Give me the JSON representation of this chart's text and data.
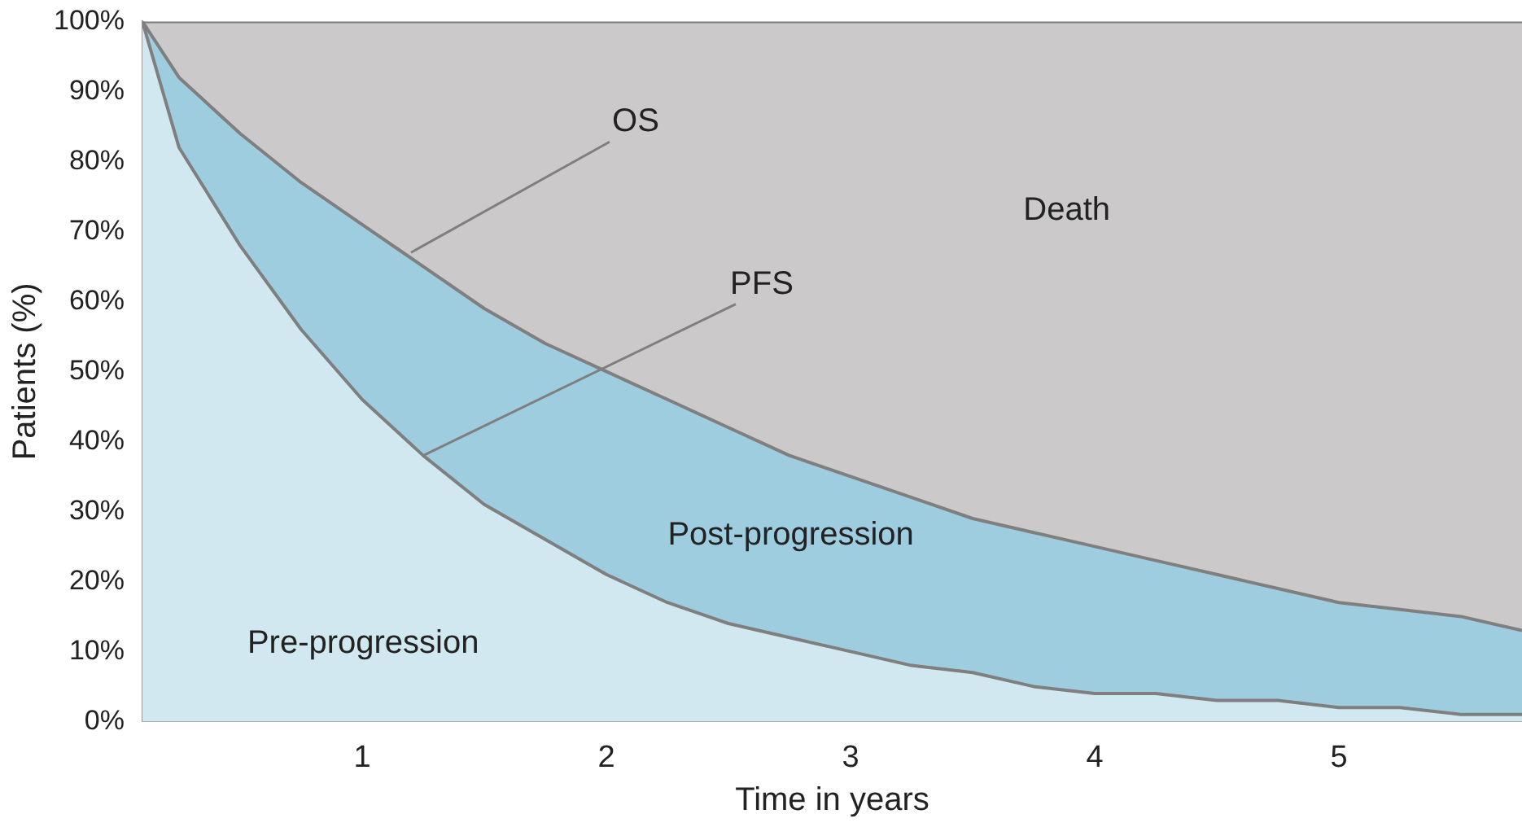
{
  "chart_data": {
    "type": "area",
    "stacked": true,
    "xlabel": "Time in years",
    "ylabel": "Patients (%)",
    "x": [
      0.1,
      0.25,
      0.5,
      0.75,
      1,
      1.25,
      1.5,
      1.75,
      2,
      2.25,
      2.5,
      2.75,
      3,
      3.25,
      3.5,
      3.75,
      4,
      4.25,
      4.5,
      4.75,
      5,
      5.25,
      5.5,
      5.75
    ],
    "series": [
      {
        "name": "Pre-progression",
        "color": "#d2e8f0",
        "values": [
          100,
          82,
          68,
          56,
          46,
          38,
          31,
          26,
          21,
          17,
          14,
          12,
          10,
          8,
          7,
          5,
          4,
          4,
          3,
          3,
          2,
          2,
          1,
          1
        ]
      },
      {
        "name": "Post-progression",
        "color": "#9fcde0",
        "values": [
          0,
          10,
          16,
          21,
          25,
          27,
          28,
          28,
          29,
          29,
          28,
          26,
          25,
          24,
          22,
          22,
          21,
          19,
          18,
          16,
          15,
          14,
          14,
          12
        ]
      },
      {
        "name": "Death",
        "color": "#cbc9ca",
        "values": [
          0,
          8,
          16,
          23,
          29,
          35,
          41,
          46,
          50,
          54,
          58,
          62,
          65,
          68,
          71,
          73,
          75,
          77,
          79,
          81,
          83,
          84,
          85,
          87
        ]
      }
    ],
    "xlim": [
      0.1,
      5.75
    ],
    "xticks": [
      1,
      2,
      3,
      4,
      5
    ],
    "ylim": [
      0,
      100
    ],
    "yticks": [
      {
        "value": 0,
        "label": "0%"
      },
      {
        "value": 10,
        "label": "10%"
      },
      {
        "value": 20,
        "label": "20%"
      },
      {
        "value": 30,
        "label": "30%"
      },
      {
        "value": 40,
        "label": "40%"
      },
      {
        "value": 50,
        "label": "50%"
      },
      {
        "value": 60,
        "label": "60%"
      },
      {
        "value": 70,
        "label": "70%"
      },
      {
        "value": 80,
        "label": "80%"
      },
      {
        "value": 90,
        "label": "90%"
      },
      {
        "value": 100,
        "label": "100%"
      }
    ],
    "grid": false,
    "legend": false,
    "annotations": [
      {
        "text": "OS",
        "x": 1.2,
        "y": 67
      },
      {
        "text": "PFS",
        "x": 1.25,
        "y": 38
      }
    ]
  }
}
